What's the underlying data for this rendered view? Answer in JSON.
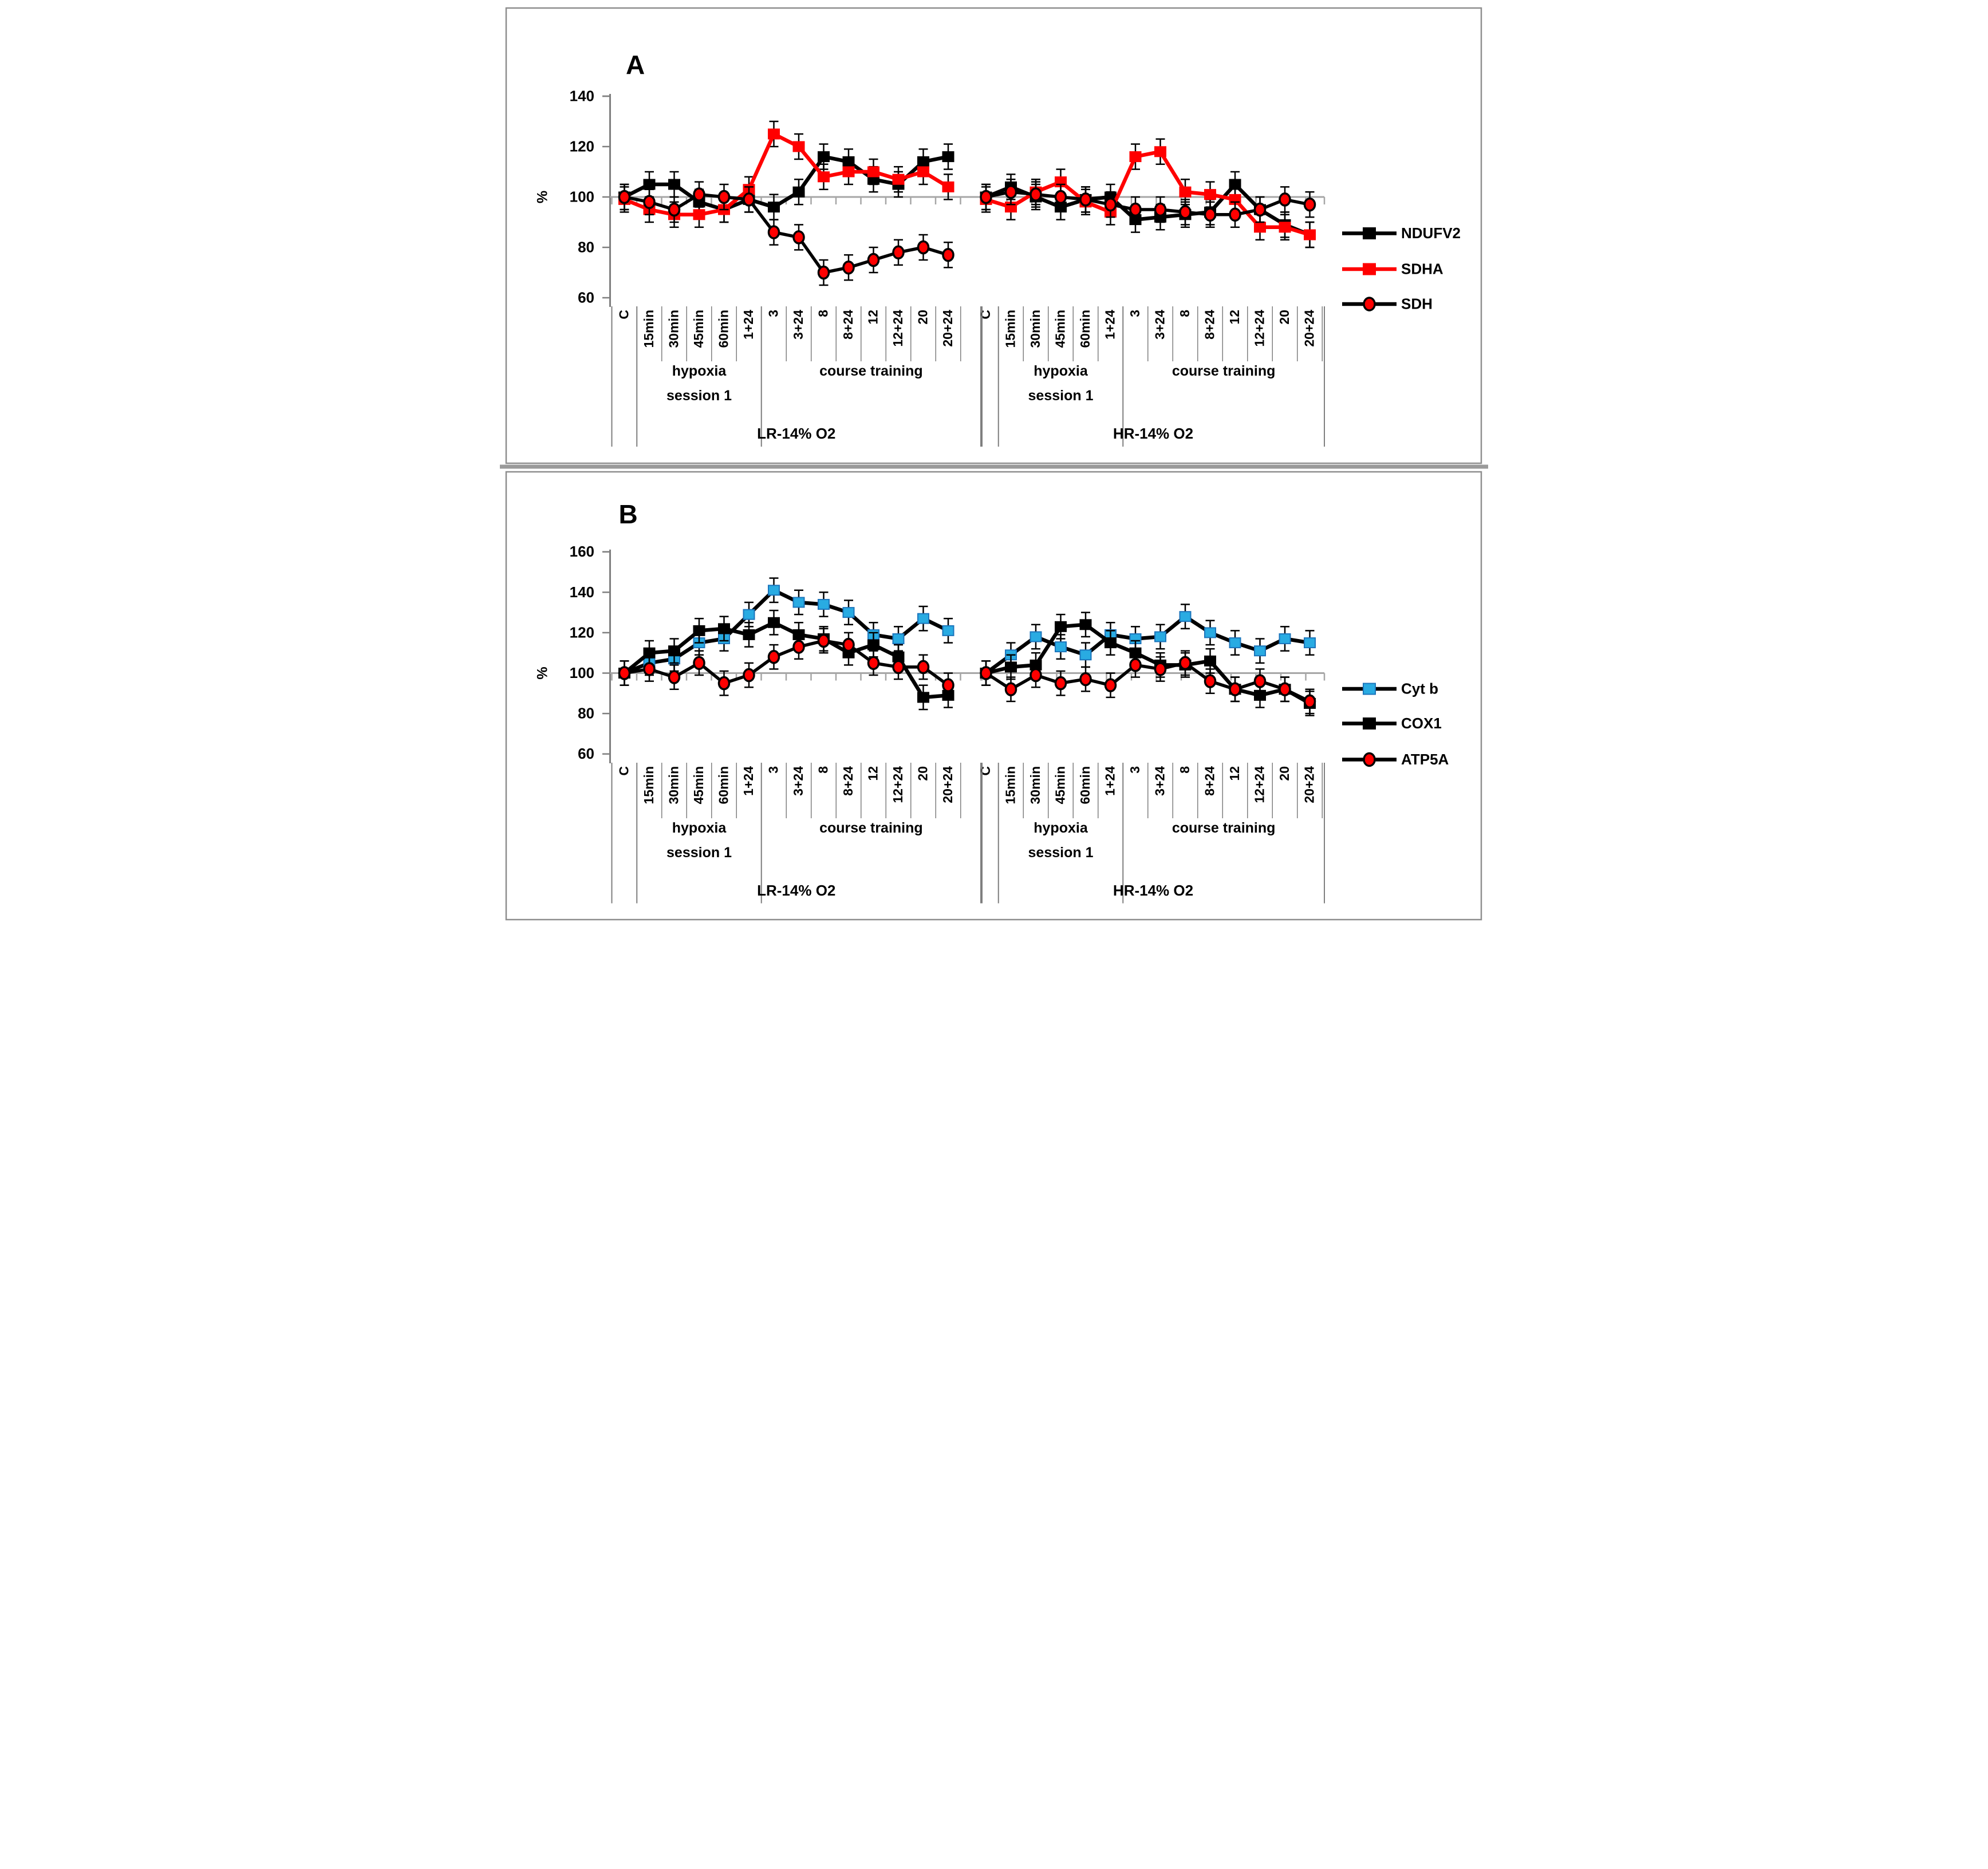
{
  "figure": {
    "description": "Two stacked line-chart panels with error bars",
    "percent_symbol": "%"
  },
  "chart_data": [
    {
      "type": "line",
      "panel_label": "A",
      "ylabel": "%",
      "ylim": [
        60,
        140
      ],
      "y_ticks": [
        140,
        120,
        100,
        80,
        60
      ],
      "baseline": 100,
      "grid": "baseline-only",
      "legend_position": "right",
      "error_bar": 5,
      "categories": [
        "C",
        "15min",
        "30min",
        "45min",
        "60min",
        "1+24",
        "3",
        "3+24",
        "8",
        "8+24",
        "12",
        "12+24",
        "20",
        "20+24"
      ],
      "stages": [
        {
          "label_lines": [
            "hypoxia",
            "session 1"
          ],
          "start": 1,
          "end": 5
        },
        {
          "label_lines": [
            "course training"
          ],
          "start": 6,
          "end": 13
        }
      ],
      "groups": [
        {
          "label": "LR-14% O2"
        },
        {
          "label": "HR-14% O2"
        }
      ],
      "series": [
        {
          "name": "NDUFV2",
          "marker": "square",
          "marker_color": "#000000",
          "marker_border": "#000000",
          "line_color": "#000000",
          "values_lr": [
            100,
            105,
            105,
            98,
            95,
            99,
            96,
            102,
            116,
            114,
            107,
            105,
            114,
            116
          ],
          "values_hr": [
            100,
            104,
            100,
            96,
            99,
            100,
            91,
            92,
            93,
            94,
            105,
            95,
            89,
            85
          ]
        },
        {
          "name": "SDHA",
          "marker": "square",
          "marker_color": "#ff0000",
          "marker_border": "#ff0000",
          "line_color": "#ff0000",
          "values_lr": [
            99,
            95,
            93,
            93,
            95,
            103,
            125,
            120,
            108,
            110,
            110,
            107,
            110,
            104
          ],
          "values_hr": [
            99,
            96,
            102,
            106,
            98,
            94,
            116,
            118,
            102,
            101,
            99,
            88,
            88,
            85
          ]
        },
        {
          "name": "SDH",
          "marker": "circle",
          "marker_color": "#ff0000",
          "marker_border": "#000000",
          "line_color": "#000000",
          "values_lr": [
            100,
            98,
            95,
            101,
            100,
            99,
            86,
            84,
            70,
            72,
            75,
            78,
            80,
            77
          ],
          "values_hr": [
            100,
            102,
            101,
            100,
            99,
            97,
            95,
            95,
            94,
            93,
            93,
            95,
            99,
            97
          ]
        }
      ]
    },
    {
      "type": "line",
      "panel_label": "B",
      "ylabel": "%",
      "ylim": [
        60,
        160
      ],
      "y_ticks": [
        160,
        140,
        120,
        100,
        80,
        60
      ],
      "baseline": 100,
      "grid": "baseline-only",
      "legend_position": "right",
      "error_bar": 6,
      "categories": [
        "C",
        "15min",
        "30min",
        "45min",
        "60min",
        "1+24",
        "3",
        "3+24",
        "8",
        "8+24",
        "12",
        "12+24",
        "20",
        "20+24"
      ],
      "stages": [
        {
          "label_lines": [
            "hypoxia",
            "session 1"
          ],
          "start": 1,
          "end": 5
        },
        {
          "label_lines": [
            "course training"
          ],
          "start": 6,
          "end": 13
        }
      ],
      "groups": [
        {
          "label": "LR-14% O2"
        },
        {
          "label": "HR-14% O2"
        }
      ],
      "series": [
        {
          "name": "Cyt b",
          "marker": "square",
          "marker_color": "#29abe2",
          "marker_border": "#1c75bc",
          "line_color": "#000000",
          "values_lr": [
            100,
            105,
            107,
            115,
            117,
            129,
            141,
            135,
            134,
            130,
            119,
            117,
            127,
            121
          ],
          "values_hr": [
            100,
            109,
            118,
            113,
            109,
            119,
            117,
            118,
            128,
            120,
            115,
            111,
            117,
            115
          ]
        },
        {
          "name": "COX1",
          "marker": "square",
          "marker_color": "#000000",
          "marker_border": "#000000",
          "line_color": "#000000",
          "values_lr": [
            100,
            110,
            111,
            121,
            122,
            119,
            125,
            119,
            117,
            110,
            114,
            108,
            88,
            89
          ],
          "values_hr": [
            100,
            103,
            104,
            123,
            124,
            115,
            110,
            104,
            104,
            106,
            92,
            89,
            92,
            85
          ]
        },
        {
          "name": "ATP5A",
          "marker": "circle",
          "marker_color": "#ff0000",
          "marker_border": "#000000",
          "line_color": "#000000",
          "values_lr": [
            100,
            102,
            98,
            105,
            95,
            99,
            108,
            113,
            116,
            114,
            105,
            103,
            103,
            94
          ],
          "values_hr": [
            100,
            92,
            99,
            95,
            97,
            94,
            104,
            102,
            105,
            96,
            92,
            96,
            92,
            86
          ]
        }
      ]
    }
  ]
}
